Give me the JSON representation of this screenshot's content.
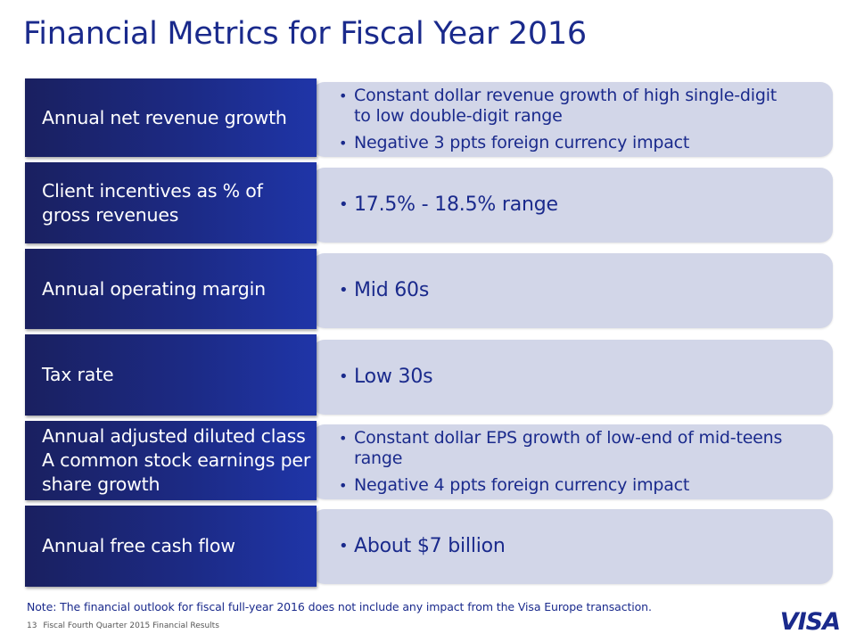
{
  "title": "Financial Metrics for Fiscal Year 2016",
  "rows": [
    {
      "label": "Annual net revenue growth",
      "bullets": [
        "Constant dollar revenue growth of high single-digit to low double-digit range",
        "Negative 3 ppts foreign currency impact"
      ]
    },
    {
      "label": "Client incentives as % of gross revenues",
      "bullets": [
        "17.5% - 18.5% range"
      ]
    },
    {
      "label": "Annual operating margin",
      "bullets": [
        "Mid 60s"
      ]
    },
    {
      "label": "Tax rate",
      "bullets": [
        "Low 30s"
      ]
    },
    {
      "label": "Annual adjusted diluted class A common stock earnings per share growth",
      "bullets": [
        "Constant dollar EPS growth of low-end of mid-teens range",
        "Negative 4 ppts foreign currency impact"
      ]
    },
    {
      "label": "Annual free cash flow",
      "bullets": [
        "About $7 billion"
      ]
    }
  ],
  "note": "Note: The financial outlook for fiscal full-year 2016 does not include any impact from the Visa Europe transaction.",
  "footer": {
    "page_number": "13",
    "text": "Fiscal Fourth Quarter 2015 Financial Results"
  },
  "logo_text": "VISA",
  "colors": {
    "title": "#1a2a8c",
    "label_bg": "#1c2a84",
    "panel_bg": "#d2d6e8"
  }
}
